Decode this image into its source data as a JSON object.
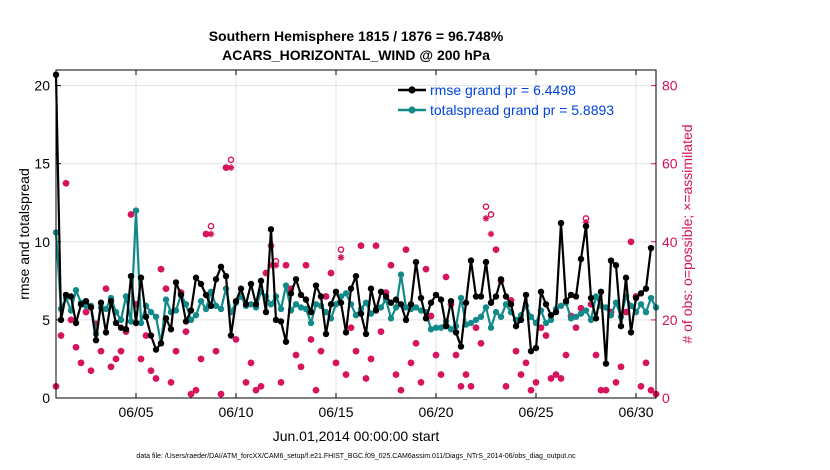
{
  "chart_data": {
    "type": "line",
    "title_line1": "Southern Hemisphere 1815 / 1876 = 96.748%",
    "title_line2": "ACARS_HORIZONTAL_WIND @ 200 hPa",
    "xlabel": "Jun.01,2014 00:00:00 start",
    "ylabel_left": "rmse and totalspread",
    "ylabel_right": "# of obs: o=possible; ×=assimilated",
    "footnote": "data file: /Users/raeder/DAI/ATM_forcXX/CAM6_setup/f.e21.FHIST_BGC.f09_025.CAM6assim.011/Diags_NTrS_2014-06/obs_diag_output.nc",
    "xlim": [
      1.0,
      31.0
    ],
    "ylim_left": [
      0,
      21
    ],
    "ylim_right": [
      0,
      84
    ],
    "x_ticks": [
      5,
      10,
      15,
      20,
      25,
      30
    ],
    "x_tick_labels": [
      "06/05",
      "06/10",
      "06/15",
      "06/20",
      "06/25",
      "06/30"
    ],
    "y_left_ticks": [
      0,
      5,
      10,
      15,
      20
    ],
    "y_left_tick_labels": [
      "0",
      "5",
      "10",
      "15",
      "20"
    ],
    "y_right_ticks": [
      0,
      20,
      40,
      60,
      80
    ],
    "y_right_tick_labels": [
      "0",
      "20",
      "40",
      "60",
      "80"
    ],
    "grid": true,
    "legend_position": "top-right",
    "colors": {
      "rmse": "#000000",
      "spread": "#138a8a",
      "obs": "#d6115c",
      "legend_text": "#0044dd"
    },
    "x": [
      1.0,
      1.25,
      1.5,
      1.75,
      2.0,
      2.25,
      2.5,
      2.75,
      3.0,
      3.25,
      3.5,
      3.75,
      4.0,
      4.25,
      4.5,
      4.75,
      5.0,
      5.25,
      5.5,
      5.75,
      6.0,
      6.25,
      6.5,
      6.75,
      7.0,
      7.25,
      7.5,
      7.75,
      8.0,
      8.25,
      8.5,
      8.75,
      9.0,
      9.25,
      9.5,
      9.75,
      10.0,
      10.25,
      10.5,
      10.75,
      11.0,
      11.25,
      11.5,
      11.75,
      12.0,
      12.25,
      12.5,
      12.75,
      13.0,
      13.25,
      13.5,
      13.75,
      14.0,
      14.25,
      14.5,
      14.75,
      15.0,
      15.25,
      15.5,
      15.75,
      16.0,
      16.25,
      16.5,
      16.75,
      17.0,
      17.25,
      17.5,
      17.75,
      18.0,
      18.25,
      18.5,
      18.75,
      19.0,
      19.25,
      19.5,
      19.75,
      20.0,
      20.25,
      20.5,
      20.75,
      21.0,
      21.25,
      21.5,
      21.75,
      22.0,
      22.25,
      22.5,
      22.75,
      23.0,
      23.25,
      23.5,
      23.75,
      24.0,
      24.25,
      24.5,
      24.75,
      25.0,
      25.25,
      25.5,
      25.75,
      26.0,
      26.25,
      26.5,
      26.75,
      27.0,
      27.25,
      27.5,
      27.75,
      28.0,
      28.25,
      28.5,
      28.75,
      29.0,
      29.25,
      29.5,
      29.75,
      30.0,
      30.25,
      30.5,
      30.75,
      31.0
    ],
    "series": [
      {
        "name": "rmse grand pr = 6.4498",
        "values": [
          20.7,
          5.0,
          6.6,
          6.5,
          4.8,
          6.0,
          6.2,
          5.8,
          3.7,
          6.1,
          4.2,
          6.2,
          4.8,
          4.5,
          4.4,
          7.8,
          4.8,
          7.7,
          5.2,
          4.0,
          3.1,
          3.5,
          5.1,
          4.4,
          7.4,
          6.6,
          4.9,
          5.6,
          7.7,
          7.3,
          6.6,
          5.9,
          7.6,
          8.4,
          7.8,
          4.0,
          6.2,
          7.0,
          6.0,
          7.3,
          6.0,
          7.5,
          5.5,
          10.8,
          5.0,
          4.9,
          3.6,
          6.7,
          7.6,
          6.6,
          6.3,
          5.5,
          7.2,
          6.5,
          4.1,
          6.0,
          6.8,
          6.1,
          4.2,
          7.0,
          7.8,
          5.4,
          4.1,
          7.0,
          5.6,
          6.8,
          6.5,
          6.1,
          6.3,
          6.0,
          5.0,
          6.0,
          8.7,
          6.4,
          5.1,
          6.1,
          6.6,
          6.3,
          4.6,
          6.2,
          4.2,
          3.3,
          6.1,
          8.8,
          6.5,
          6.5,
          8.7,
          6.1,
          6.5,
          7.6,
          6.5,
          6.0,
          4.6,
          5.0,
          6.6,
          3.0,
          3.2,
          6.8,
          6.0,
          5.3,
          5.5,
          11.2,
          6.2,
          6.6,
          6.5,
          8.9,
          11.0,
          6.4,
          5.1,
          6.8,
          2.2,
          8.8,
          8.5,
          4.6,
          7.7,
          4.2,
          6.4,
          6.7,
          7.0,
          9.6,
          null
        ]
      },
      {
        "name": "totalspread grand pr = 5.8893",
        "values": [
          10.6,
          5.7,
          6.4,
          5.6,
          6.9,
          6.1,
          5.9,
          5.9,
          4.1,
          5.8,
          5.7,
          6.4,
          5.5,
          5.0,
          6.5,
          4.9,
          12.0,
          4.8,
          5.9,
          5.5,
          5.2,
          3.5,
          6.3,
          5.5,
          5.6,
          6.6,
          6.0,
          5.0,
          5.3,
          6.2,
          5.7,
          6.8,
          5.9,
          5.7,
          7.0,
          5.5,
          6.1,
          6.5,
          5.9,
          6.0,
          5.8,
          6.8,
          6.5,
          6.0,
          6.5,
          5.7,
          7.2,
          5.6,
          6.0,
          5.8,
          5.7,
          4.8,
          6.0,
          5.9,
          5.5,
          5.1,
          6.0,
          6.5,
          6.7,
          6.0,
          5.3,
          5.7,
          6.1,
          5.4,
          5.7,
          5.8,
          6.3,
          5.1,
          5.8,
          7.9,
          5.8,
          5.7,
          5.8,
          5.6,
          5.5,
          4.4,
          4.5,
          4.5,
          4.9,
          4.4,
          4.6,
          6.4,
          4.7,
          4.8,
          5.0,
          5.2,
          5.8,
          4.5,
          5.5,
          5.2,
          6.0,
          5.5,
          5.0,
          5.3,
          5.9,
          5.2,
          4.8,
          5.6,
          4.8,
          5.0,
          5.7,
          5.9,
          6.1,
          5.1,
          5.2,
          5.4,
          5.6,
          5.0,
          6.5,
          5.9,
          5.8,
          5.3,
          6.1,
          5.2,
          6.5,
          5.9,
          5.5,
          6.0,
          5.5,
          6.4,
          5.8
        ]
      },
      {
        "name": "obs possible",
        "values": [
          3,
          16,
          55,
          20,
          13,
          9,
          22,
          7,
          19,
          12,
          28,
          8,
          10,
          12,
          17,
          47,
          24,
          10,
          16,
          7,
          5,
          33,
          28,
          4,
          12,
          27,
          17,
          1,
          2,
          10,
          42,
          44,
          12,
          1,
          59,
          61,
          15,
          26,
          4,
          9,
          2,
          3,
          32,
          39,
          35,
          4,
          34,
          28,
          11,
          8,
          34,
          15,
          2,
          12,
          26,
          32,
          9,
          38,
          6,
          18,
          12,
          39,
          5,
          10,
          39,
          17,
          27,
          34,
          6,
          2,
          38,
          9,
          14,
          4,
          33,
          21,
          11,
          6,
          31,
          24,
          11,
          3,
          6,
          3,
          18,
          14,
          49,
          47,
          38,
          30,
          3,
          25,
          12,
          6,
          9,
          2,
          4,
          18,
          16,
          5,
          6,
          5,
          11,
          21,
          18,
          23,
          46,
          24,
          11,
          2,
          2,
          22,
          4,
          8,
          22,
          40,
          26,
          3,
          9,
          2,
          1
        ]
      },
      {
        "name": "obs assimilated",
        "values": [
          3,
          16,
          55,
          20,
          13,
          9,
          22,
          7,
          19,
          12,
          28,
          8,
          10,
          12,
          17,
          47,
          24,
          10,
          16,
          7,
          5,
          33,
          28,
          4,
          12,
          27,
          17,
          1,
          2,
          10,
          42,
          42,
          12,
          1,
          59,
          59,
          15,
          26,
          4,
          9,
          2,
          3,
          32,
          34,
          34,
          4,
          34,
          28,
          11,
          8,
          34,
          15,
          2,
          12,
          26,
          32,
          9,
          36,
          6,
          18,
          12,
          39,
          5,
          10,
          39,
          17,
          27,
          34,
          6,
          2,
          38,
          9,
          14,
          4,
          33,
          21,
          11,
          6,
          31,
          24,
          11,
          3,
          6,
          3,
          18,
          14,
          46,
          42,
          38,
          30,
          3,
          25,
          12,
          6,
          9,
          2,
          4,
          18,
          16,
          5,
          6,
          5,
          11,
          21,
          18,
          23,
          45,
          24,
          11,
          2,
          2,
          22,
          4,
          8,
          22,
          40,
          26,
          3,
          9,
          2,
          1
        ]
      }
    ]
  }
}
